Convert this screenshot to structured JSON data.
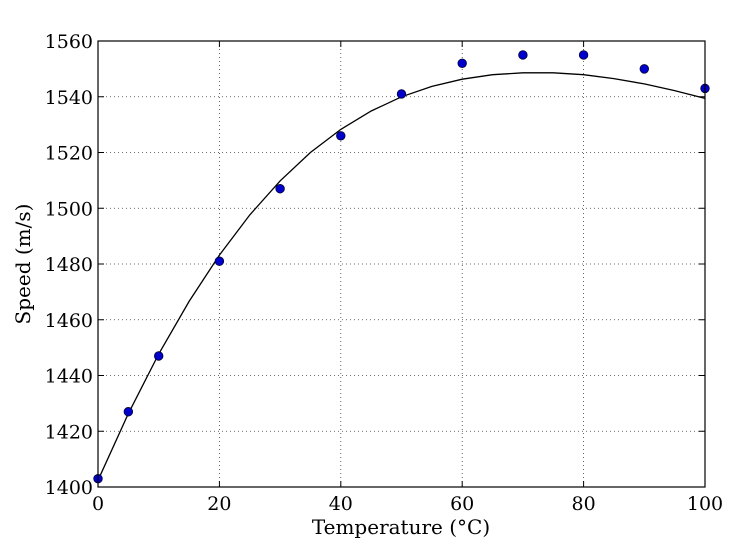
{
  "chart_data": {
    "type": "scatter",
    "title": "",
    "xlabel": "Temperature (°C)",
    "ylabel": "Speed (m/s)",
    "xlim": [
      0,
      100
    ],
    "ylim": [
      1400,
      1560
    ],
    "xticks": [
      0,
      20,
      40,
      60,
      80,
      100
    ],
    "yticks": [
      1400,
      1420,
      1440,
      1460,
      1480,
      1500,
      1520,
      1540,
      1560
    ],
    "xtick_labels": [
      "0",
      "20",
      "40",
      "60",
      "80",
      "100"
    ],
    "ytick_labels": [
      "1400",
      "1420",
      "1440",
      "1460",
      "1480",
      "1500",
      "1520",
      "1540",
      "1560"
    ],
    "grid": true,
    "series": [
      {
        "type": "scatter",
        "color": "#0000cc",
        "x": [
          0,
          5,
          10,
          20,
          30,
          40,
          50,
          60,
          70,
          80,
          90,
          100
        ],
        "y": [
          1403,
          1427,
          1447,
          1481,
          1507,
          1526,
          1541,
          1552,
          1555,
          1555,
          1550,
          1543
        ]
      },
      {
        "type": "line",
        "color": "#000000",
        "x": [
          0,
          5,
          10,
          15,
          20,
          25,
          30,
          35,
          40,
          45,
          50,
          55,
          60,
          65,
          70,
          75,
          80,
          85,
          90,
          95,
          100
        ],
        "y": [
          1402.4,
          1426.3,
          1447.7,
          1466.6,
          1483.2,
          1497.6,
          1509.8,
          1520.0,
          1528.3,
          1534.9,
          1540.0,
          1543.7,
          1546.3,
          1547.9,
          1548.6,
          1548.6,
          1547.9,
          1546.5,
          1544.6,
          1542.2,
          1539.4
        ]
      }
    ]
  }
}
